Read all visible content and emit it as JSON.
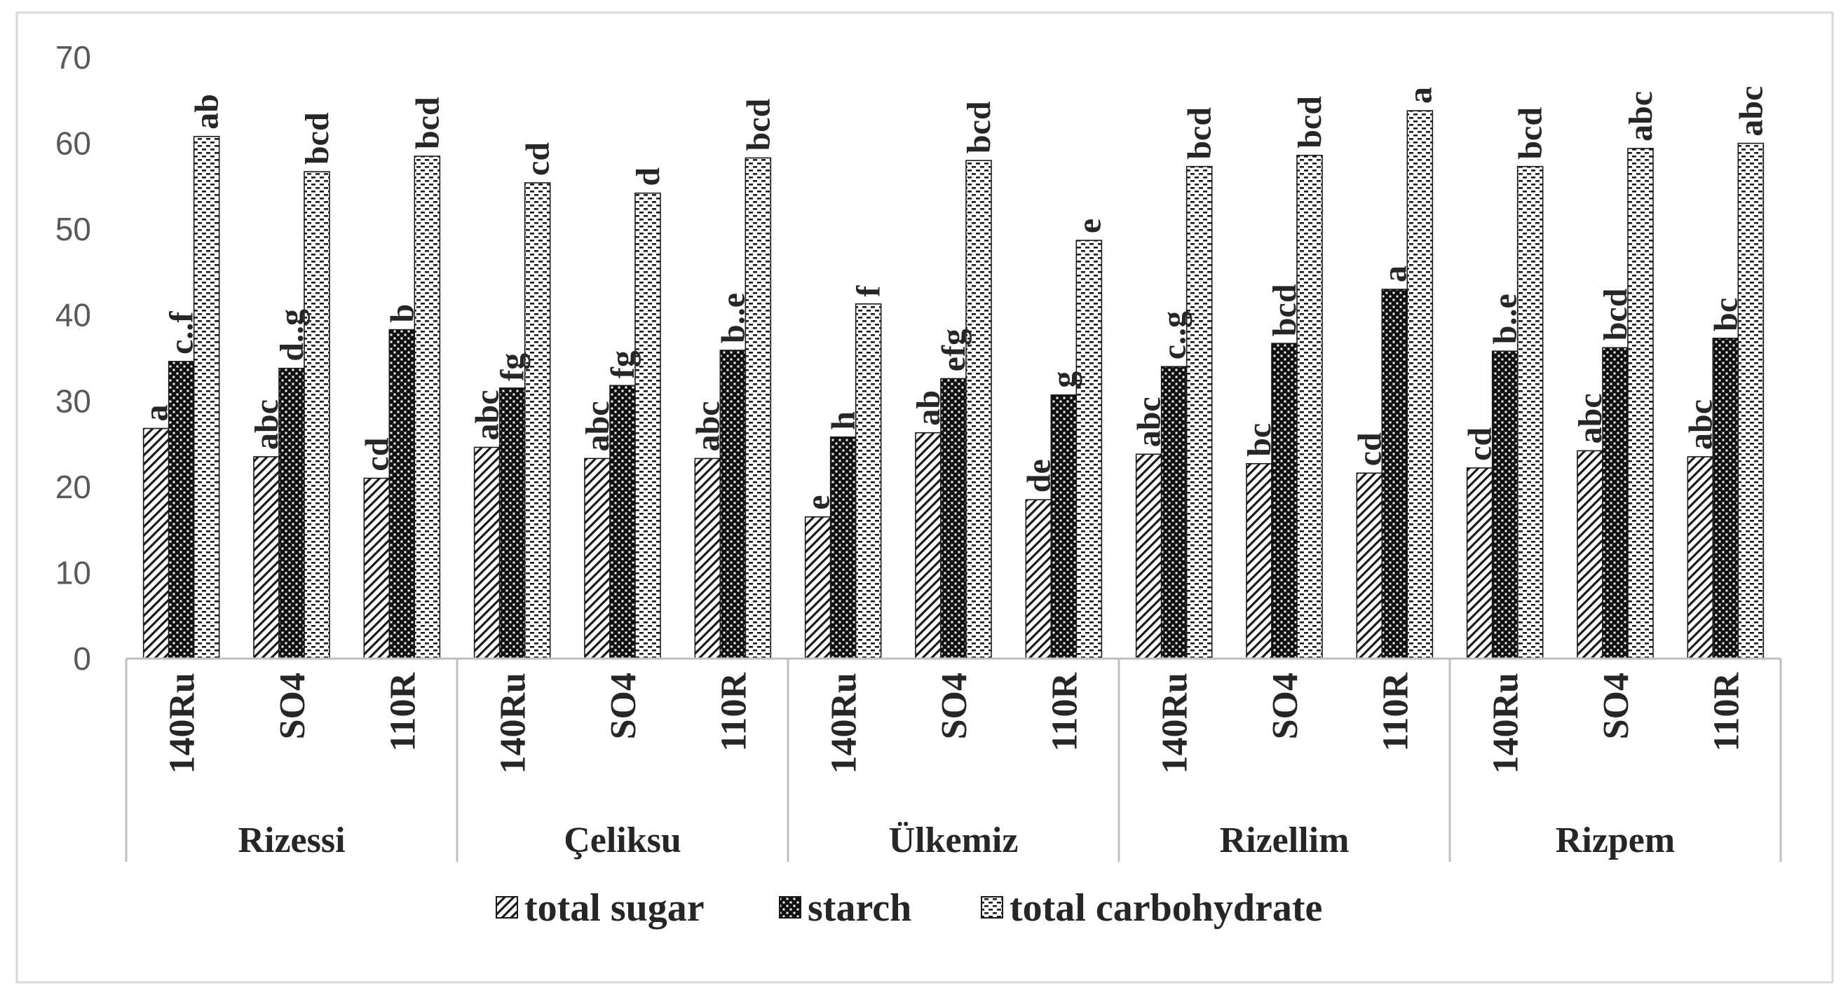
{
  "chart_data": {
    "type": "bar",
    "title": "",
    "xlabel": "",
    "ylabel": "",
    "ylim": [
      0,
      70
    ],
    "yticks": [
      0,
      10,
      20,
      30,
      40,
      50,
      60,
      70
    ],
    "gridlines": false,
    "legend_position": "bottom",
    "groups": [
      {
        "name": "Rizessi",
        "rootstocks": [
          "140Ru",
          "SO4",
          "110R"
        ]
      },
      {
        "name": "Çeliksu",
        "rootstocks": [
          "140Ru",
          "SO4",
          "110R"
        ]
      },
      {
        "name": "Ülkemiz",
        "rootstocks": [
          "140Ru",
          "SO4",
          "110R"
        ]
      },
      {
        "name": "Rizellim",
        "rootstocks": [
          "140Ru",
          "SO4",
          "110R"
        ]
      },
      {
        "name": "Rizpem",
        "rootstocks": [
          "140Ru",
          "SO4",
          "110R"
        ]
      }
    ],
    "series": [
      {
        "name": "total sugar",
        "pattern": "diagonal-hatch",
        "values": [
          26.8,
          23.5,
          21.0,
          24.6,
          23.3,
          23.3,
          16.5,
          26.3,
          18.5,
          23.8,
          22.7,
          21.6,
          22.2,
          24.2,
          23.5
        ],
        "letters": [
          "a",
          "abc",
          "cd",
          "abc",
          "abc",
          "abc",
          "e",
          "ab",
          "de",
          "abc",
          "bc",
          "cd",
          "cd",
          "abc",
          "abc"
        ]
      },
      {
        "name": "starch",
        "pattern": "dark-crosshatch",
        "values": [
          34.6,
          33.8,
          38.3,
          31.5,
          31.8,
          35.9,
          25.8,
          32.6,
          30.7,
          34.0,
          36.7,
          43.0,
          35.8,
          36.2,
          37.3
        ],
        "letters": [
          "c..f",
          "d..g",
          "b",
          "fg",
          "fg",
          "b..e",
          "h",
          "efg",
          "g",
          "c..g",
          "bcd",
          "a",
          "b..e",
          "bcd",
          "bc"
        ]
      },
      {
        "name": "total carbohydrate",
        "pattern": "light-dashes",
        "values": [
          60.8,
          56.7,
          58.5,
          55.4,
          54.2,
          58.3,
          41.3,
          58.0,
          48.7,
          57.3,
          58.6,
          63.8,
          57.3,
          59.4,
          60.0
        ],
        "letters": [
          "ab",
          "bcd",
          "bcd",
          "cd",
          "d",
          "bcd",
          "f",
          "bcd",
          "e",
          "bcd",
          "bcd",
          "a",
          "bcd",
          "abc",
          "abc"
        ]
      }
    ]
  }
}
